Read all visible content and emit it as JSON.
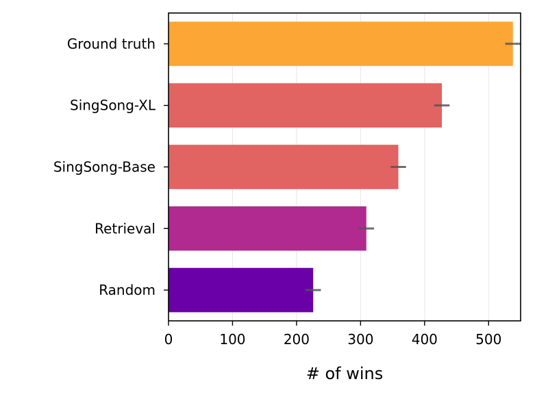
{
  "chart_data": {
    "type": "bar",
    "orientation": "horizontal",
    "categories": [
      "Ground truth",
      "SingSong-XL",
      "SingSong-Base",
      "Retrieval",
      "Random"
    ],
    "values": [
      538,
      427,
      359,
      309,
      226
    ],
    "errors": [
      12,
      12,
      12,
      12,
      12
    ],
    "colors": [
      "#fca636",
      "#e16462",
      "#e16462",
      "#b12a90",
      "#6a00a8"
    ],
    "error_color": "#555555",
    "xlabel": "# of wins",
    "ylabel": "",
    "title": "",
    "xlim": [
      0,
      550
    ],
    "xticks": [
      0,
      100,
      200,
      300,
      400,
      500
    ],
    "xtick_labels": [
      "0",
      "100",
      "200",
      "300",
      "400",
      "500"
    ],
    "grid": "vertical, faint"
  }
}
